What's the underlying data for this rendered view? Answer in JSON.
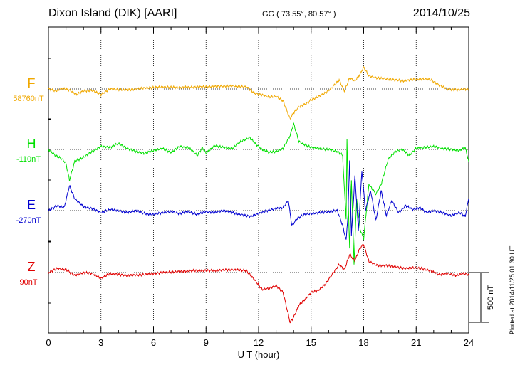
{
  "header": {
    "station": "Dixon Island (DIK)  [AARI]",
    "coords": "GG ( 73.55°,  80.57° )",
    "date": "2014/10/25",
    "plotted": "Plotted at 2014/11/25 01:30 UT"
  },
  "colors": {
    "F": "#f0a800",
    "H": "#00e000",
    "E": "#0000d0",
    "Z": "#e00000",
    "axis": "#000000",
    "grid": "#000000"
  },
  "chart_data": {
    "type": "line",
    "title": "Dixon Island (DIK)  [AARI]",
    "xlabel": "U T (hour)",
    "ylabel": "",
    "xlim": [
      0,
      24
    ],
    "x_ticks": [
      "0",
      "3",
      "6",
      "9",
      "12",
      "15",
      "18",
      "21",
      "24"
    ],
    "scale_bar": {
      "label": "500 nT",
      "value_nT": 500
    },
    "series": [
      {
        "name": "F",
        "baseline_label": "58760nT",
        "baseline": 58760,
        "points": [
          [
            0,
            0
          ],
          [
            0.4,
            -20
          ],
          [
            0.8,
            5
          ],
          [
            1.2,
            -10
          ],
          [
            1.6,
            -55
          ],
          [
            2.0,
            -20
          ],
          [
            2.5,
            -15
          ],
          [
            3.0,
            -55
          ],
          [
            3.5,
            0
          ],
          [
            4.5,
            -10
          ],
          [
            5.5,
            10
          ],
          [
            6.5,
            20
          ],
          [
            7.5,
            15
          ],
          [
            8.5,
            20
          ],
          [
            9.5,
            25
          ],
          [
            10.5,
            30
          ],
          [
            11.3,
            20
          ],
          [
            11.8,
            -45
          ],
          [
            12.2,
            -60
          ],
          [
            12.6,
            -80
          ],
          [
            13.0,
            -75
          ],
          [
            13.4,
            -120
          ],
          [
            13.8,
            -300
          ],
          [
            14.0,
            -240
          ],
          [
            14.3,
            -180
          ],
          [
            14.7,
            -150
          ],
          [
            15.0,
            -110
          ],
          [
            15.4,
            -80
          ],
          [
            15.8,
            -40
          ],
          [
            16.2,
            15
          ],
          [
            16.6,
            90
          ],
          [
            16.9,
            -20
          ],
          [
            17.2,
            110
          ],
          [
            17.5,
            80
          ],
          [
            17.8,
            150
          ],
          [
            18.0,
            220
          ],
          [
            18.3,
            130
          ],
          [
            18.8,
            110
          ],
          [
            19.3,
            100
          ],
          [
            19.8,
            90
          ],
          [
            20.3,
            80
          ],
          [
            20.8,
            95
          ],
          [
            21.3,
            100
          ],
          [
            21.8,
            95
          ],
          [
            22.3,
            40
          ],
          [
            22.8,
            0
          ],
          [
            23.3,
            -10
          ],
          [
            23.7,
            0
          ],
          [
            24.0,
            -5
          ]
        ]
      },
      {
        "name": "H",
        "baseline_label": "-110nT",
        "baseline": -110,
        "points": [
          [
            0,
            0
          ],
          [
            0.4,
            -60
          ],
          [
            0.8,
            -100
          ],
          [
            1.0,
            -140
          ],
          [
            1.2,
            -310
          ],
          [
            1.5,
            -120
          ],
          [
            2.0,
            -80
          ],
          [
            2.5,
            -20
          ],
          [
            3.0,
            30
          ],
          [
            3.5,
            20
          ],
          [
            4.0,
            60
          ],
          [
            4.5,
            10
          ],
          [
            5.0,
            -20
          ],
          [
            5.5,
            -40
          ],
          [
            6.0,
            -10
          ],
          [
            6.5,
            10
          ],
          [
            7.0,
            -30
          ],
          [
            7.5,
            30
          ],
          [
            8.0,
            20
          ],
          [
            8.5,
            -60
          ],
          [
            8.8,
            20
          ],
          [
            9.0,
            -40
          ],
          [
            9.5,
            40
          ],
          [
            10.0,
            20
          ],
          [
            10.5,
            10
          ],
          [
            11.0,
            80
          ],
          [
            11.5,
            120
          ],
          [
            11.8,
            60
          ],
          [
            12.2,
            0
          ],
          [
            12.6,
            -30
          ],
          [
            13.0,
            -20
          ],
          [
            13.4,
            10
          ],
          [
            13.8,
            140
          ],
          [
            14.0,
            260
          ],
          [
            14.3,
            80
          ],
          [
            14.6,
            50
          ],
          [
            15.0,
            20
          ],
          [
            15.5,
            10
          ],
          [
            16.0,
            0
          ],
          [
            16.5,
            -20
          ],
          [
            16.8,
            -60
          ],
          [
            16.9,
            -400
          ],
          [
            17.0,
            -700
          ],
          [
            17.05,
            100
          ],
          [
            17.1,
            -400
          ],
          [
            17.2,
            -1000
          ],
          [
            17.3,
            -300
          ],
          [
            17.45,
            -1150
          ],
          [
            17.6,
            -500
          ],
          [
            17.8,
            -800
          ],
          [
            18.0,
            -900
          ],
          [
            18.3,
            -350
          ],
          [
            18.7,
            -450
          ],
          [
            19.0,
            -350
          ],
          [
            19.4,
            -100
          ],
          [
            19.8,
            -20
          ],
          [
            20.2,
            0
          ],
          [
            20.6,
            -60
          ],
          [
            21.0,
            10
          ],
          [
            21.5,
            20
          ],
          [
            22.0,
            30
          ],
          [
            22.5,
            10
          ],
          [
            23.0,
            0
          ],
          [
            23.5,
            -10
          ],
          [
            23.8,
            20
          ],
          [
            24.0,
            -120
          ]
        ]
      },
      {
        "name": "E",
        "baseline_label": "-270nT",
        "baseline": -270,
        "points": [
          [
            0,
            0
          ],
          [
            0.5,
            50
          ],
          [
            0.9,
            30
          ],
          [
            1.2,
            250
          ],
          [
            1.5,
            120
          ],
          [
            2.0,
            40
          ],
          [
            2.5,
            20
          ],
          [
            3.0,
            -20
          ],
          [
            3.5,
            10
          ],
          [
            4.0,
            0
          ],
          [
            4.5,
            -20
          ],
          [
            5.0,
            0
          ],
          [
            5.5,
            -30
          ],
          [
            6.0,
            -40
          ],
          [
            6.5,
            -20
          ],
          [
            7.0,
            -10
          ],
          [
            7.5,
            -30
          ],
          [
            8.0,
            -10
          ],
          [
            8.5,
            -40
          ],
          [
            9.0,
            -10
          ],
          [
            9.5,
            -20
          ],
          [
            10.0,
            0
          ],
          [
            10.5,
            -20
          ],
          [
            11.0,
            -40
          ],
          [
            11.5,
            -60
          ],
          [
            12.0,
            -30
          ],
          [
            12.5,
            0
          ],
          [
            13.0,
            20
          ],
          [
            13.4,
            30
          ],
          [
            13.7,
            100
          ],
          [
            13.9,
            -150
          ],
          [
            14.2,
            -80
          ],
          [
            14.6,
            -40
          ],
          [
            15.0,
            -30
          ],
          [
            15.5,
            -20
          ],
          [
            16.0,
            -10
          ],
          [
            16.5,
            0
          ],
          [
            16.8,
            -150
          ],
          [
            17.0,
            -300
          ],
          [
            17.1,
            -50
          ],
          [
            17.2,
            500
          ],
          [
            17.3,
            -250
          ],
          [
            17.5,
            350
          ],
          [
            17.7,
            -200
          ],
          [
            17.9,
            400
          ],
          [
            18.1,
            0
          ],
          [
            18.4,
            200
          ],
          [
            18.7,
            -100
          ],
          [
            19.0,
            200
          ],
          [
            19.3,
            -50
          ],
          [
            19.6,
            100
          ],
          [
            20.0,
            -20
          ],
          [
            20.4,
            50
          ],
          [
            20.8,
            10
          ],
          [
            21.2,
            30
          ],
          [
            21.6,
            -20
          ],
          [
            22.0,
            0
          ],
          [
            22.5,
            -20
          ],
          [
            23.0,
            -50
          ],
          [
            23.5,
            -20
          ],
          [
            23.8,
            -60
          ],
          [
            24.0,
            120
          ]
        ]
      },
      {
        "name": "Z",
        "baseline_label": "90nT",
        "baseline": 90,
        "points": [
          [
            0,
            0
          ],
          [
            0.5,
            40
          ],
          [
            1.0,
            30
          ],
          [
            1.5,
            -30
          ],
          [
            2.0,
            0
          ],
          [
            2.5,
            -10
          ],
          [
            3.0,
            -60
          ],
          [
            3.5,
            -10
          ],
          [
            4.5,
            -30
          ],
          [
            5.5,
            -20
          ],
          [
            6.5,
            0
          ],
          [
            7.5,
            10
          ],
          [
            8.5,
            20
          ],
          [
            9.5,
            20
          ],
          [
            10.5,
            30
          ],
          [
            11.3,
            20
          ],
          [
            11.8,
            -80
          ],
          [
            12.2,
            -170
          ],
          [
            12.6,
            -160
          ],
          [
            13.0,
            -130
          ],
          [
            13.4,
            -200
          ],
          [
            13.8,
            -500
          ],
          [
            14.0,
            -450
          ],
          [
            14.3,
            -330
          ],
          [
            14.7,
            -260
          ],
          [
            15.0,
            -200
          ],
          [
            15.4,
            -180
          ],
          [
            15.8,
            -120
          ],
          [
            16.2,
            -20
          ],
          [
            16.6,
            80
          ],
          [
            16.9,
            30
          ],
          [
            17.2,
            180
          ],
          [
            17.5,
            120
          ],
          [
            17.8,
            250
          ],
          [
            18.0,
            280
          ],
          [
            18.3,
            110
          ],
          [
            18.8,
            70
          ],
          [
            19.3,
            70
          ],
          [
            19.8,
            60
          ],
          [
            20.3,
            40
          ],
          [
            20.8,
            50
          ],
          [
            21.3,
            40
          ],
          [
            21.8,
            20
          ],
          [
            22.3,
            -20
          ],
          [
            22.8,
            -10
          ],
          [
            23.3,
            -30
          ],
          [
            23.7,
            -10
          ],
          [
            24.0,
            -20
          ]
        ]
      }
    ]
  }
}
